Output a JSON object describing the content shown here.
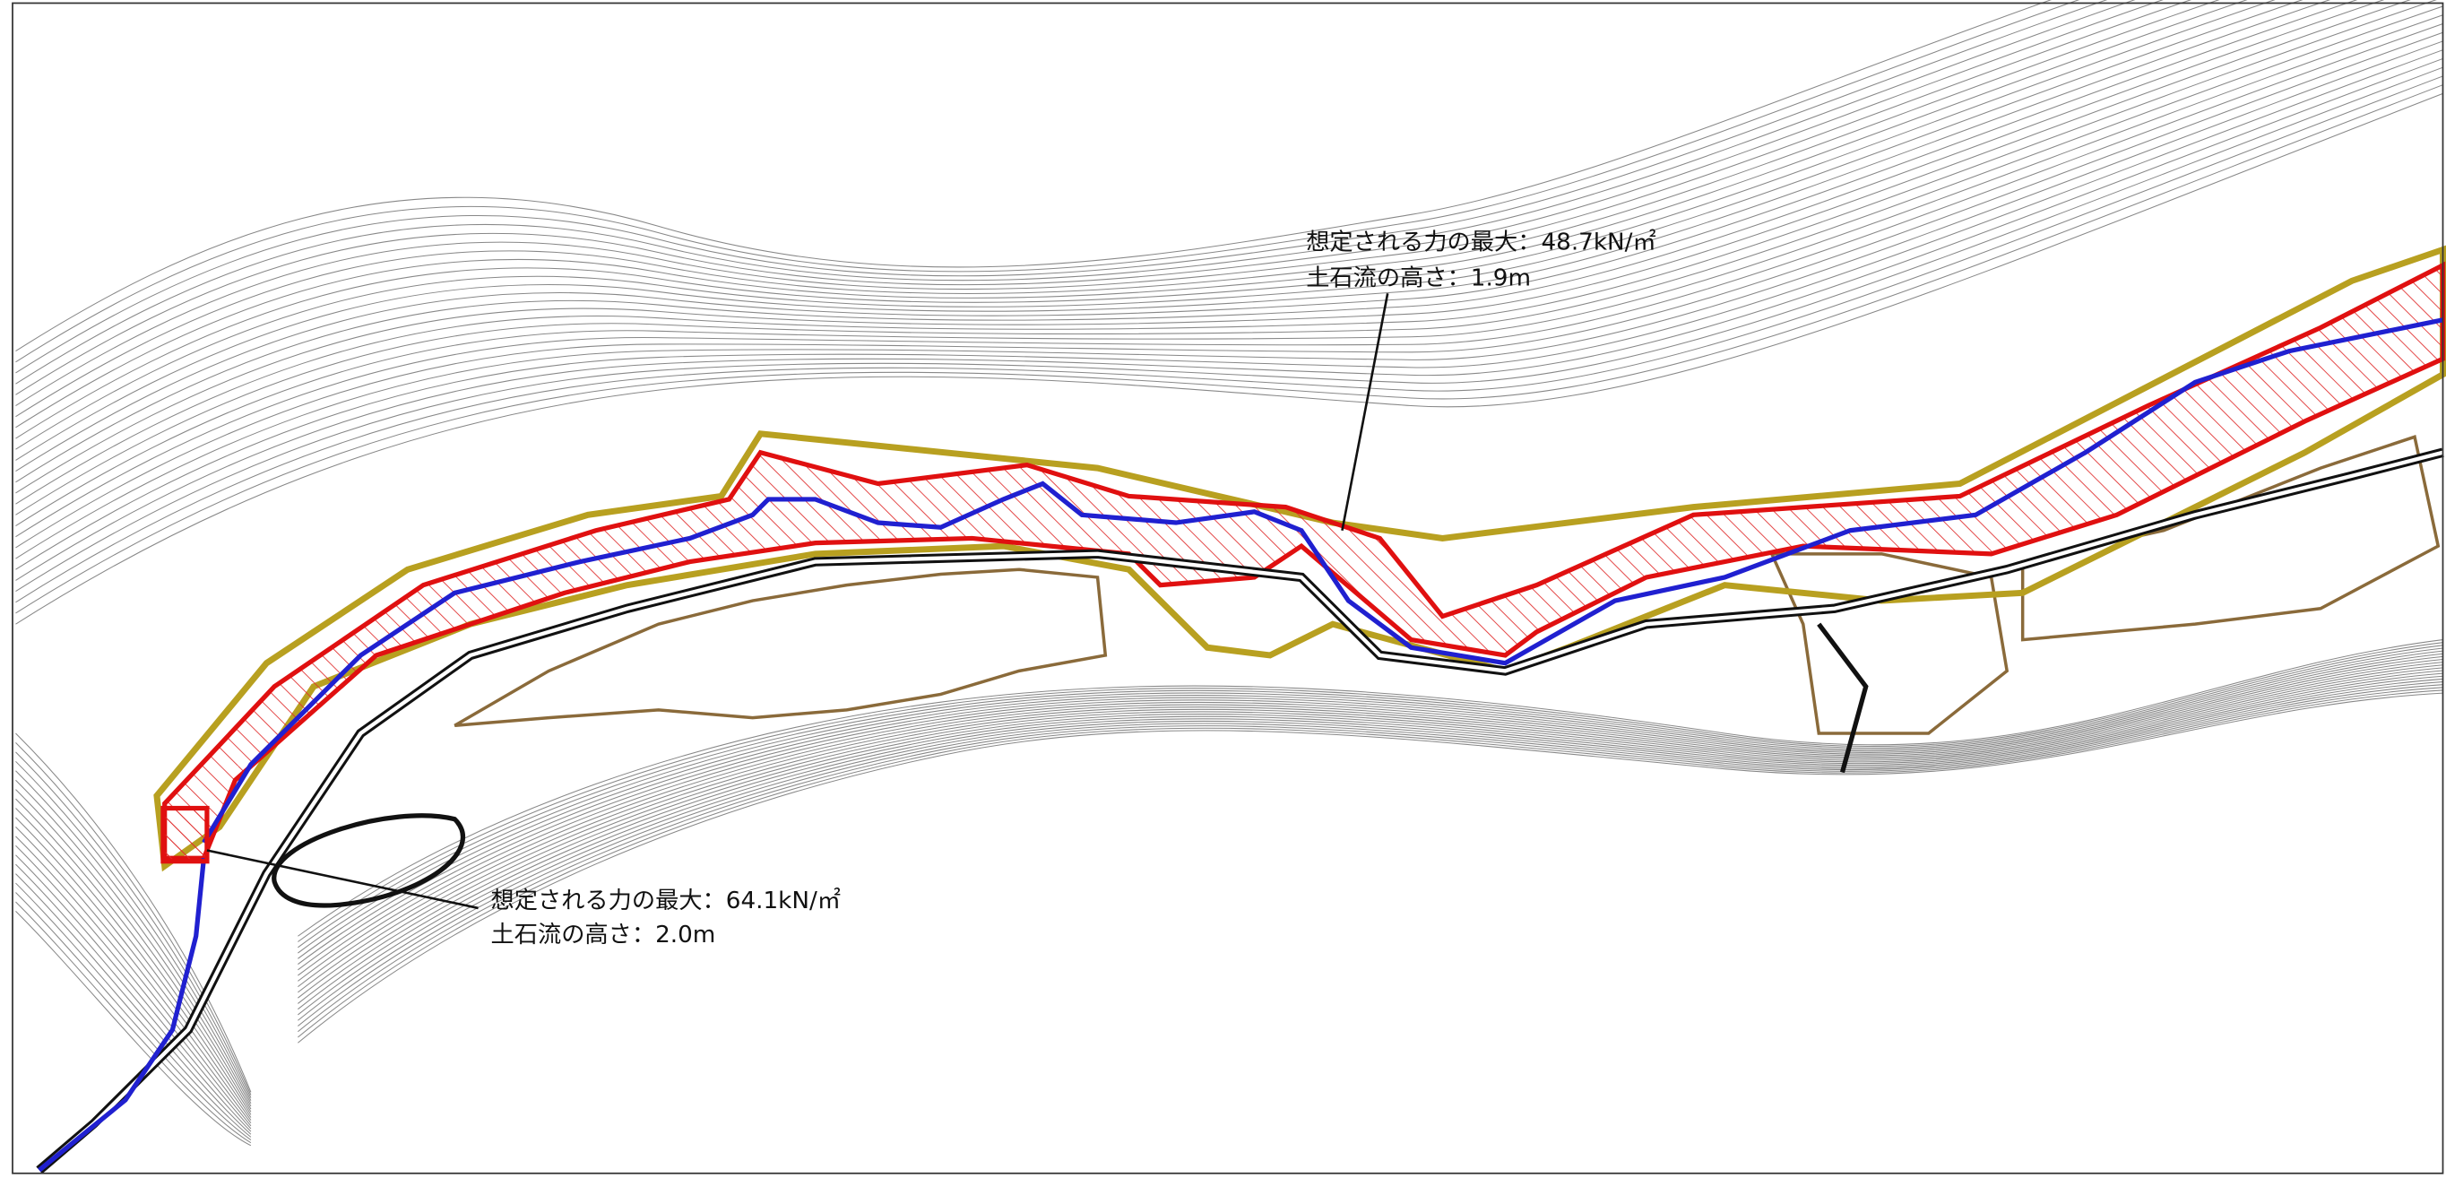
{
  "annotations": [
    {
      "force": "想定される力の最大：48.7kN/㎡",
      "height": "土石流の高さ：1.9m"
    },
    {
      "force": "想定される力の最大：64.1kN/㎡",
      "height": "土石流の高さ：2.0m"
    }
  ]
}
